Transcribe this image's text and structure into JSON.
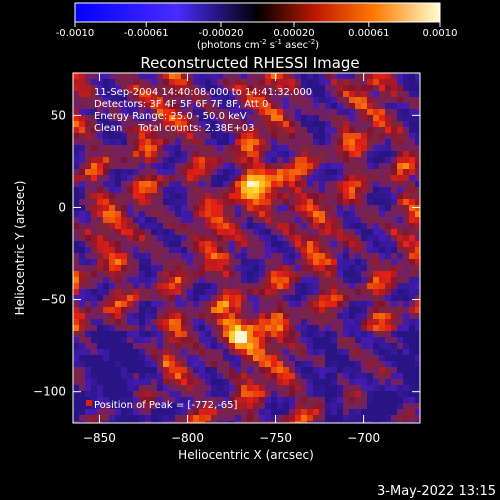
{
  "colorbar": {
    "tick_labels": [
      "-0.0010",
      "-0.00061",
      "-0.00020",
      "0.00020",
      "0.00061",
      "0.0010"
    ],
    "tick_values": [
      -0.001,
      -0.00061,
      -0.0002,
      0.0002,
      0.00061,
      0.001
    ],
    "range": [
      -0.001,
      0.001
    ]
  },
  "units": {
    "base": "(photons cm",
    "e1": "-2",
    "p2": " s",
    "e2": "-1",
    "p3": " asec",
    "e3": "-2",
    "end": ")"
  },
  "chart_data": {
    "type": "heatmap",
    "title": "Reconstructed RHESSI Image",
    "xlabel": "Heliocentric X (arcsec)",
    "ylabel": "Heliocentric Y (arcsec)",
    "xlim": [
      -865,
      -668
    ],
    "ylim": [
      -117,
      73
    ],
    "x_ticks": [
      -850,
      -800,
      -750,
      -700
    ],
    "x_tick_labels": [
      "−850",
      "−800",
      "−750",
      "−700"
    ],
    "y_ticks": [
      50,
      0,
      -50,
      -100
    ],
    "y_tick_labels": [
      "50",
      "0",
      "−50",
      "−100"
    ],
    "annotations": [
      "11-Sep-2004 14:40:08.000 to 14:41:32.000",
      "Detectors: 3F 4F 5F 6F 7F 8F, Att 0",
      "Energy Range: 25.0 - 50.0 keV",
      "Clean     Total counts: 2.38E+03"
    ],
    "peak_label": "Position of Peak = [-772,-65]",
    "peak": [
      -772,
      -65
    ]
  },
  "footer": {
    "timestamp": "3-May-2022 13:15"
  }
}
